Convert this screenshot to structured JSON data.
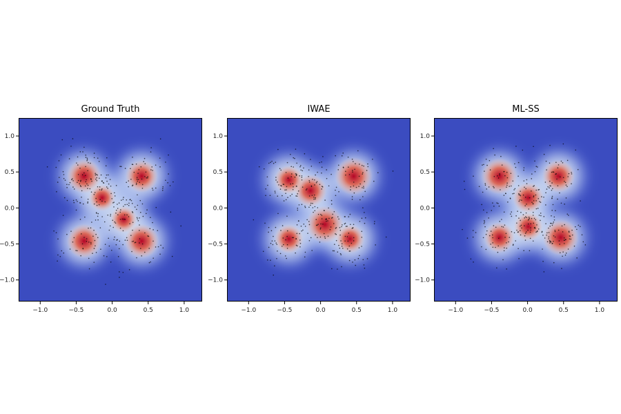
{
  "chart_data": [
    {
      "type": "heatmap",
      "title": "Ground Truth",
      "xlabel": "",
      "ylabel": "",
      "xlim": [
        -1.3,
        1.25
      ],
      "ylim": [
        -1.3,
        1.25
      ],
      "xticks": [
        -1.0,
        -0.5,
        0.0,
        0.5,
        1.0
      ],
      "yticks": [
        -1.0,
        -0.5,
        0.0,
        0.5,
        1.0
      ],
      "xtick_labels": [
        "−1.0",
        "−0.5",
        "0.0",
        "0.5",
        "1.0"
      ],
      "ytick_labels": [
        "−1.0",
        "−0.5",
        "0.0",
        "0.5",
        "1.0"
      ],
      "colormap": "coolwarm",
      "grid": false,
      "density_peaks": [
        {
          "x": -0.4,
          "y": 0.45,
          "weight": 1.0
        },
        {
          "x": 0.4,
          "y": 0.45,
          "weight": 0.9
        },
        {
          "x": -0.4,
          "y": -0.45,
          "weight": 1.0
        },
        {
          "x": 0.4,
          "y": -0.45,
          "weight": 1.0
        },
        {
          "x": -0.15,
          "y": 0.15,
          "weight": 0.6
        },
        {
          "x": 0.15,
          "y": -0.15,
          "weight": 0.6
        }
      ]
    },
    {
      "type": "heatmap",
      "title": "IWAE",
      "xlabel": "",
      "ylabel": "",
      "xlim": [
        -1.3,
        1.25
      ],
      "ylim": [
        -1.3,
        1.25
      ],
      "xticks": [
        -1.0,
        -0.5,
        0.0,
        0.5,
        1.0
      ],
      "yticks": [
        -1.0,
        -0.5,
        0.0,
        0.5,
        1.0
      ],
      "xtick_labels": [
        "−1.0",
        "−0.5",
        "0.0",
        "0.5",
        "1.0"
      ],
      "ytick_labels": [
        "−1.0",
        "−0.5",
        "0.0",
        "0.5",
        "1.0"
      ],
      "colormap": "coolwarm",
      "grid": false,
      "density_peaks": [
        {
          "x": 0.45,
          "y": 0.45,
          "weight": 1.2
        },
        {
          "x": 0.05,
          "y": -0.22,
          "weight": 1.2
        },
        {
          "x": -0.15,
          "y": 0.25,
          "weight": 0.9
        },
        {
          "x": -0.45,
          "y": 0.4,
          "weight": 0.7
        },
        {
          "x": -0.45,
          "y": -0.42,
          "weight": 0.7
        },
        {
          "x": 0.4,
          "y": -0.42,
          "weight": 0.7
        }
      ]
    },
    {
      "type": "heatmap",
      "title": "ML-SS",
      "xlabel": "",
      "ylabel": "",
      "xlim": [
        -1.3,
        1.25
      ],
      "ylim": [
        -1.3,
        1.25
      ],
      "xticks": [
        -1.0,
        -0.5,
        0.0,
        0.5,
        1.0
      ],
      "yticks": [
        -1.0,
        -0.5,
        0.0,
        0.5,
        1.0
      ],
      "xtick_labels": [
        "−1.0",
        "−0.5",
        "0.0",
        "0.5",
        "1.0"
      ],
      "ytick_labels": [
        "−1.0",
        "−0.5",
        "0.0",
        "0.5",
        "1.0"
      ],
      "colormap": "coolwarm",
      "grid": false,
      "density_peaks": [
        {
          "x": -0.4,
          "y": 0.45,
          "weight": 1.1
        },
        {
          "x": 0.42,
          "y": 0.45,
          "weight": 0.9
        },
        {
          "x": 0.0,
          "y": 0.15,
          "weight": 0.8
        },
        {
          "x": -0.4,
          "y": -0.4,
          "weight": 0.8
        },
        {
          "x": 0.45,
          "y": -0.4,
          "weight": 1.1
        },
        {
          "x": 0.0,
          "y": -0.25,
          "weight": 0.7
        }
      ]
    }
  ]
}
